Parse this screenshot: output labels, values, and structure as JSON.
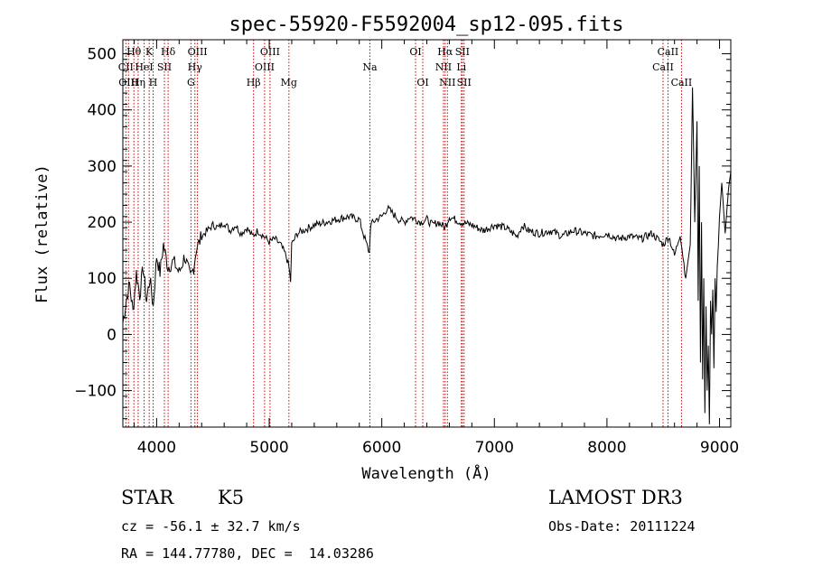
{
  "chart_data": {
    "type": "line",
    "title": "spec-55920-F5592004_sp12-095.fits",
    "xlabel": "Wavelength (Å)",
    "ylabel": "Flux (relative)",
    "xlim": [
      3700,
      9100
    ],
    "ylim": [
      -165,
      525
    ],
    "xticks": [
      4000,
      5000,
      6000,
      7000,
      8000,
      9000
    ],
    "xtick_labels": [
      "4000",
      "5000",
      "6000",
      "7000",
      "8000",
      "9000"
    ],
    "yticks": [
      -100,
      0,
      100,
      200,
      300,
      400,
      500
    ],
    "ytick_labels": [
      "−100",
      "0",
      "100",
      "200",
      "300",
      "400",
      "500"
    ],
    "series": [
      {
        "name": "flux",
        "x": [
          3700,
          3730,
          3760,
          3790,
          3820,
          3850,
          3880,
          3910,
          3940,
          3970,
          4000,
          4030,
          4060,
          4100,
          4150,
          4200,
          4250,
          4300,
          4330,
          4350,
          4400,
          4450,
          4500,
          4550,
          4600,
          4650,
          4700,
          4750,
          4800,
          4850,
          4900,
          4950,
          5000,
          5050,
          5100,
          5150,
          5175,
          5190,
          5200,
          5250,
          5300,
          5350,
          5400,
          5500,
          5600,
          5700,
          5800,
          5850,
          5890,
          5900,
          5950,
          6000,
          6050,
          6100,
          6150,
          6200,
          6250,
          6300,
          6350,
          6400,
          6450,
          6500,
          6563,
          6600,
          6700,
          6800,
          6900,
          7000,
          7100,
          7200,
          7250,
          7300,
          7400,
          7500,
          7600,
          7700,
          7800,
          7900,
          8000,
          8100,
          8200,
          8300,
          8400,
          8450,
          8500,
          8550,
          8600,
          8650,
          8700,
          8740,
          8760,
          8780,
          8800,
          8810,
          8820,
          8830,
          8840,
          8850,
          8860,
          8870,
          8880,
          8890,
          8900,
          8910,
          8920,
          8930,
          8940,
          8950,
          8960,
          8970,
          8980,
          8990,
          9000,
          9020,
          9050,
          9080,
          9100
        ],
        "y": [
          20,
          60,
          90,
          40,
          110,
          70,
          120,
          60,
          100,
          50,
          140,
          110,
          160,
          120,
          130,
          110,
          140,
          100,
          120,
          150,
          175,
          185,
          195,
          190,
          200,
          185,
          195,
          180,
          190,
          175,
          185,
          175,
          165,
          170,
          160,
          140,
          120,
          95,
          160,
          180,
          185,
          190,
          195,
          200,
          205,
          210,
          205,
          170,
          145,
          195,
          205,
          210,
          225,
          215,
          205,
          200,
          210,
          205,
          200,
          205,
          195,
          200,
          190,
          210,
          200,
          195,
          185,
          195,
          190,
          175,
          195,
          185,
          180,
          185,
          175,
          185,
          180,
          175,
          180,
          170,
          175,
          170,
          180,
          170,
          160,
          175,
          140,
          180,
          100,
          160,
          440,
          200,
          380,
          60,
          300,
          -50,
          200,
          -80,
          100,
          -140,
          50,
          -100,
          -20,
          -160,
          60,
          0,
          80,
          -60,
          100,
          40,
          120,
          160,
          210,
          270,
          180,
          260,
          290
        ],
        "color": "#000000"
      }
    ],
    "markers": [
      {
        "name": "Hθ",
        "wavelength": 3798,
        "label_row": 1
      },
      {
        "name": "CII",
        "wavelength": 3727,
        "label_row": 2
      },
      {
        "name": "OIII",
        "wavelength": 3750,
        "label_row": 3
      },
      {
        "name": "Hη",
        "wavelength": 3836,
        "label_row": 3
      },
      {
        "name": "HeI",
        "wavelength": 3889,
        "label_row": 2
      },
      {
        "name": "K",
        "wavelength": 3934,
        "label_row": 1
      },
      {
        "name": "H",
        "wavelength": 3969,
        "label_row": 3
      },
      {
        "name": "SII",
        "wavelength": 4069,
        "label_row": 2
      },
      {
        "name": "Hδ",
        "wavelength": 4102,
        "label_row": 1
      },
      {
        "name": "G",
        "wavelength": 4305,
        "label_row": 3
      },
      {
        "name": "Hγ",
        "wavelength": 4340,
        "label_row": 2
      },
      {
        "name": "OIII",
        "wavelength": 4363,
        "label_row": 1
      },
      {
        "name": "Hβ",
        "wavelength": 4861,
        "label_row": 3
      },
      {
        "name": "OIII",
        "wavelength": 4959,
        "label_row": 2
      },
      {
        "name": "OIII",
        "wavelength": 5007,
        "label_row": 1
      },
      {
        "name": "Mg",
        "wavelength": 5175,
        "label_row": 3
      },
      {
        "name": "Na",
        "wavelength": 5894,
        "label_row": 2
      },
      {
        "name": "OI",
        "wavelength": 6300,
        "label_row": 1
      },
      {
        "name": "OI",
        "wavelength": 6364,
        "label_row": 3
      },
      {
        "name": "NII",
        "wavelength": 6548,
        "label_row": 2
      },
      {
        "name": "Hα",
        "wavelength": 6563,
        "label_row": 1
      },
      {
        "name": "NII",
        "wavelength": 6583,
        "label_row": 3
      },
      {
        "name": "Li",
        "wavelength": 6707,
        "label_row": 2
      },
      {
        "name": "SII",
        "wavelength": 6716,
        "label_row": 1
      },
      {
        "name": "SII",
        "wavelength": 6731,
        "label_row": 3
      },
      {
        "name": "CaII",
        "wavelength": 8498,
        "label_row": 2
      },
      {
        "name": "CaII",
        "wavelength": 8542,
        "label_row": 1
      },
      {
        "name": "CaII",
        "wavelength": 8662,
        "label_row": 3
      }
    ],
    "marker_color": "#cc0000"
  },
  "info": {
    "object_class": "STAR",
    "subclass": "K5",
    "survey": "LAMOST DR3",
    "velocity": "cz = -56.1 ± 32.7 km/s",
    "obs_date": "Obs-Date: 20111224",
    "coords": "RA = 144.77780, DEC =  14.03286"
  }
}
